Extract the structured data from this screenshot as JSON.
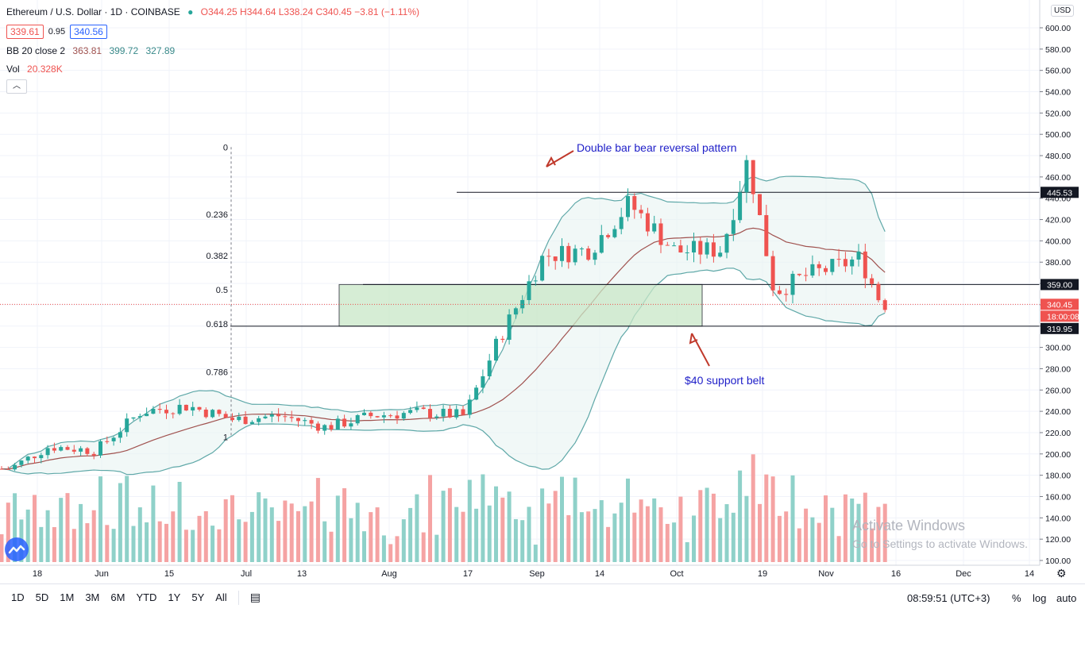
{
  "header": {
    "symbol_title": "Ethereum / U.S. Dollar · 1D · COINBASE",
    "ohlc": "O344.25 H344.64 L338.24 C340.45 −3.81 (−1.11%)",
    "bid": "339.61",
    "spread": "0.95",
    "ask": "340.56",
    "bb_label": "BB 20 close 2",
    "bb_basis": "363.81",
    "bb_upper": "399.72",
    "bb_lower": "327.89",
    "vol_label": "Vol",
    "vol_value": "20.328K",
    "collapse_icon": "chevron-up-icon"
  },
  "price_axis": {
    "currency_badge": "USD",
    "ticks": [
      "100.00",
      "120.00",
      "140.00",
      "160.00",
      "180.00",
      "200.00",
      "220.00",
      "240.00",
      "260.00",
      "280.00",
      "300.00",
      "320.00",
      "340.00",
      "360.00",
      "380.00",
      "400.00",
      "420.00",
      "440.00",
      "460.00",
      "480.00",
      "500.00",
      "520.00",
      "540.00",
      "560.00",
      "580.00",
      "600.00"
    ],
    "labels": {
      "resistance": "445.53",
      "support_top": "359.00",
      "current_price": "340.45",
      "countdown": "18:00:08",
      "support_bottom": "319.95"
    }
  },
  "time_axis": {
    "ticks": [
      "18",
      "Jun",
      "15",
      "Jul",
      "13",
      "Aug",
      "17",
      "Sep",
      "14",
      "Oct",
      "19",
      "Nov",
      "16",
      "Dec",
      "14"
    ]
  },
  "fibonacci": {
    "levels": [
      {
        "label": "0",
        "price": 488
      },
      {
        "label": "0.236",
        "price": 425
      },
      {
        "label": "0.382",
        "price": 386
      },
      {
        "label": "0.5",
        "price": 354
      },
      {
        "label": "0.618",
        "price": 322
      },
      {
        "label": "0.786",
        "price": 277
      },
      {
        "label": "1",
        "price": 216
      }
    ]
  },
  "annotations": {
    "top_note": "Double bar bear reversal pattern",
    "bottom_note": "$40 support belt"
  },
  "colors": {
    "up": "#26a69a",
    "down": "#ef5350",
    "vol_up": "#8fd1c9",
    "vol_down": "#f5a3a3",
    "bb_band": "#5fa8a8",
    "bb_basis": "#a0524f",
    "zone_fill": "#c9e7c7",
    "annotation_text": "#1e1ec8",
    "arrow": "#c0392b",
    "price_red": "#ef5350",
    "label_black": "#131722"
  },
  "toolbar": {
    "timeframes": [
      "1D",
      "5D",
      "1M",
      "3M",
      "6M",
      "YTD",
      "1Y",
      "5Y",
      "All"
    ],
    "compare_icon": "calendar-range-icon",
    "clock": "08:59:51 (UTC+3)",
    "percent_label": "%",
    "log_label": "log",
    "auto_label": "auto",
    "settings_icon": "gear-icon"
  },
  "watermark": {
    "line1": "Activate Windows",
    "line2": "Go to Settings to activate Windows."
  },
  "chart_data": {
    "type": "candlestick",
    "title": "Ethereum / U.S. Dollar · 1D · COINBASE",
    "xlabel": "",
    "ylabel": "",
    "ylim": [
      100,
      600
    ],
    "x_range": [
      "2020-05-09",
      "2020-12-19"
    ],
    "grid": true,
    "series": [
      {
        "name": "Price",
        "type": "candlestick",
        "ohlc_close_path": [
          {
            "date": "2020-05-12",
            "c": 186
          },
          {
            "date": "2020-05-18",
            "c": 207
          },
          {
            "date": "2020-05-25",
            "c": 203
          },
          {
            "date": "2020-06-01",
            "c": 240
          },
          {
            "date": "2020-06-08",
            "c": 245
          },
          {
            "date": "2020-06-15",
            "c": 232
          },
          {
            "date": "2020-06-22",
            "c": 236
          },
          {
            "date": "2020-06-29",
            "c": 225
          },
          {
            "date": "2020-07-06",
            "c": 236
          },
          {
            "date": "2020-07-13",
            "c": 239
          },
          {
            "date": "2020-07-20",
            "c": 236
          },
          {
            "date": "2020-07-25",
            "c": 305
          },
          {
            "date": "2020-08-01",
            "c": 386
          },
          {
            "date": "2020-08-08",
            "c": 392
          },
          {
            "date": "2020-08-14",
            "c": 435
          },
          {
            "date": "2020-08-21",
            "c": 390
          },
          {
            "date": "2020-08-28",
            "c": 392
          },
          {
            "date": "2020-09-01",
            "c": 477
          },
          {
            "date": "2020-09-05",
            "c": 352
          },
          {
            "date": "2020-09-10",
            "c": 368
          },
          {
            "date": "2020-09-14",
            "c": 375
          },
          {
            "date": "2020-09-18",
            "c": 384
          },
          {
            "date": "2020-09-21",
            "c": 344
          },
          {
            "date": "2020-09-22",
            "c": 340.45
          }
        ]
      },
      {
        "name": "BB 20 close 2",
        "basis": 363.81,
        "upper": 399.72,
        "lower": 327.89
      },
      {
        "name": "Vol",
        "last": "20.328K"
      }
    ],
    "horizontal_levels": [
      445.53,
      359.0,
      319.95
    ],
    "support_zone": {
      "from": 319.95,
      "to": 359.0
    }
  }
}
